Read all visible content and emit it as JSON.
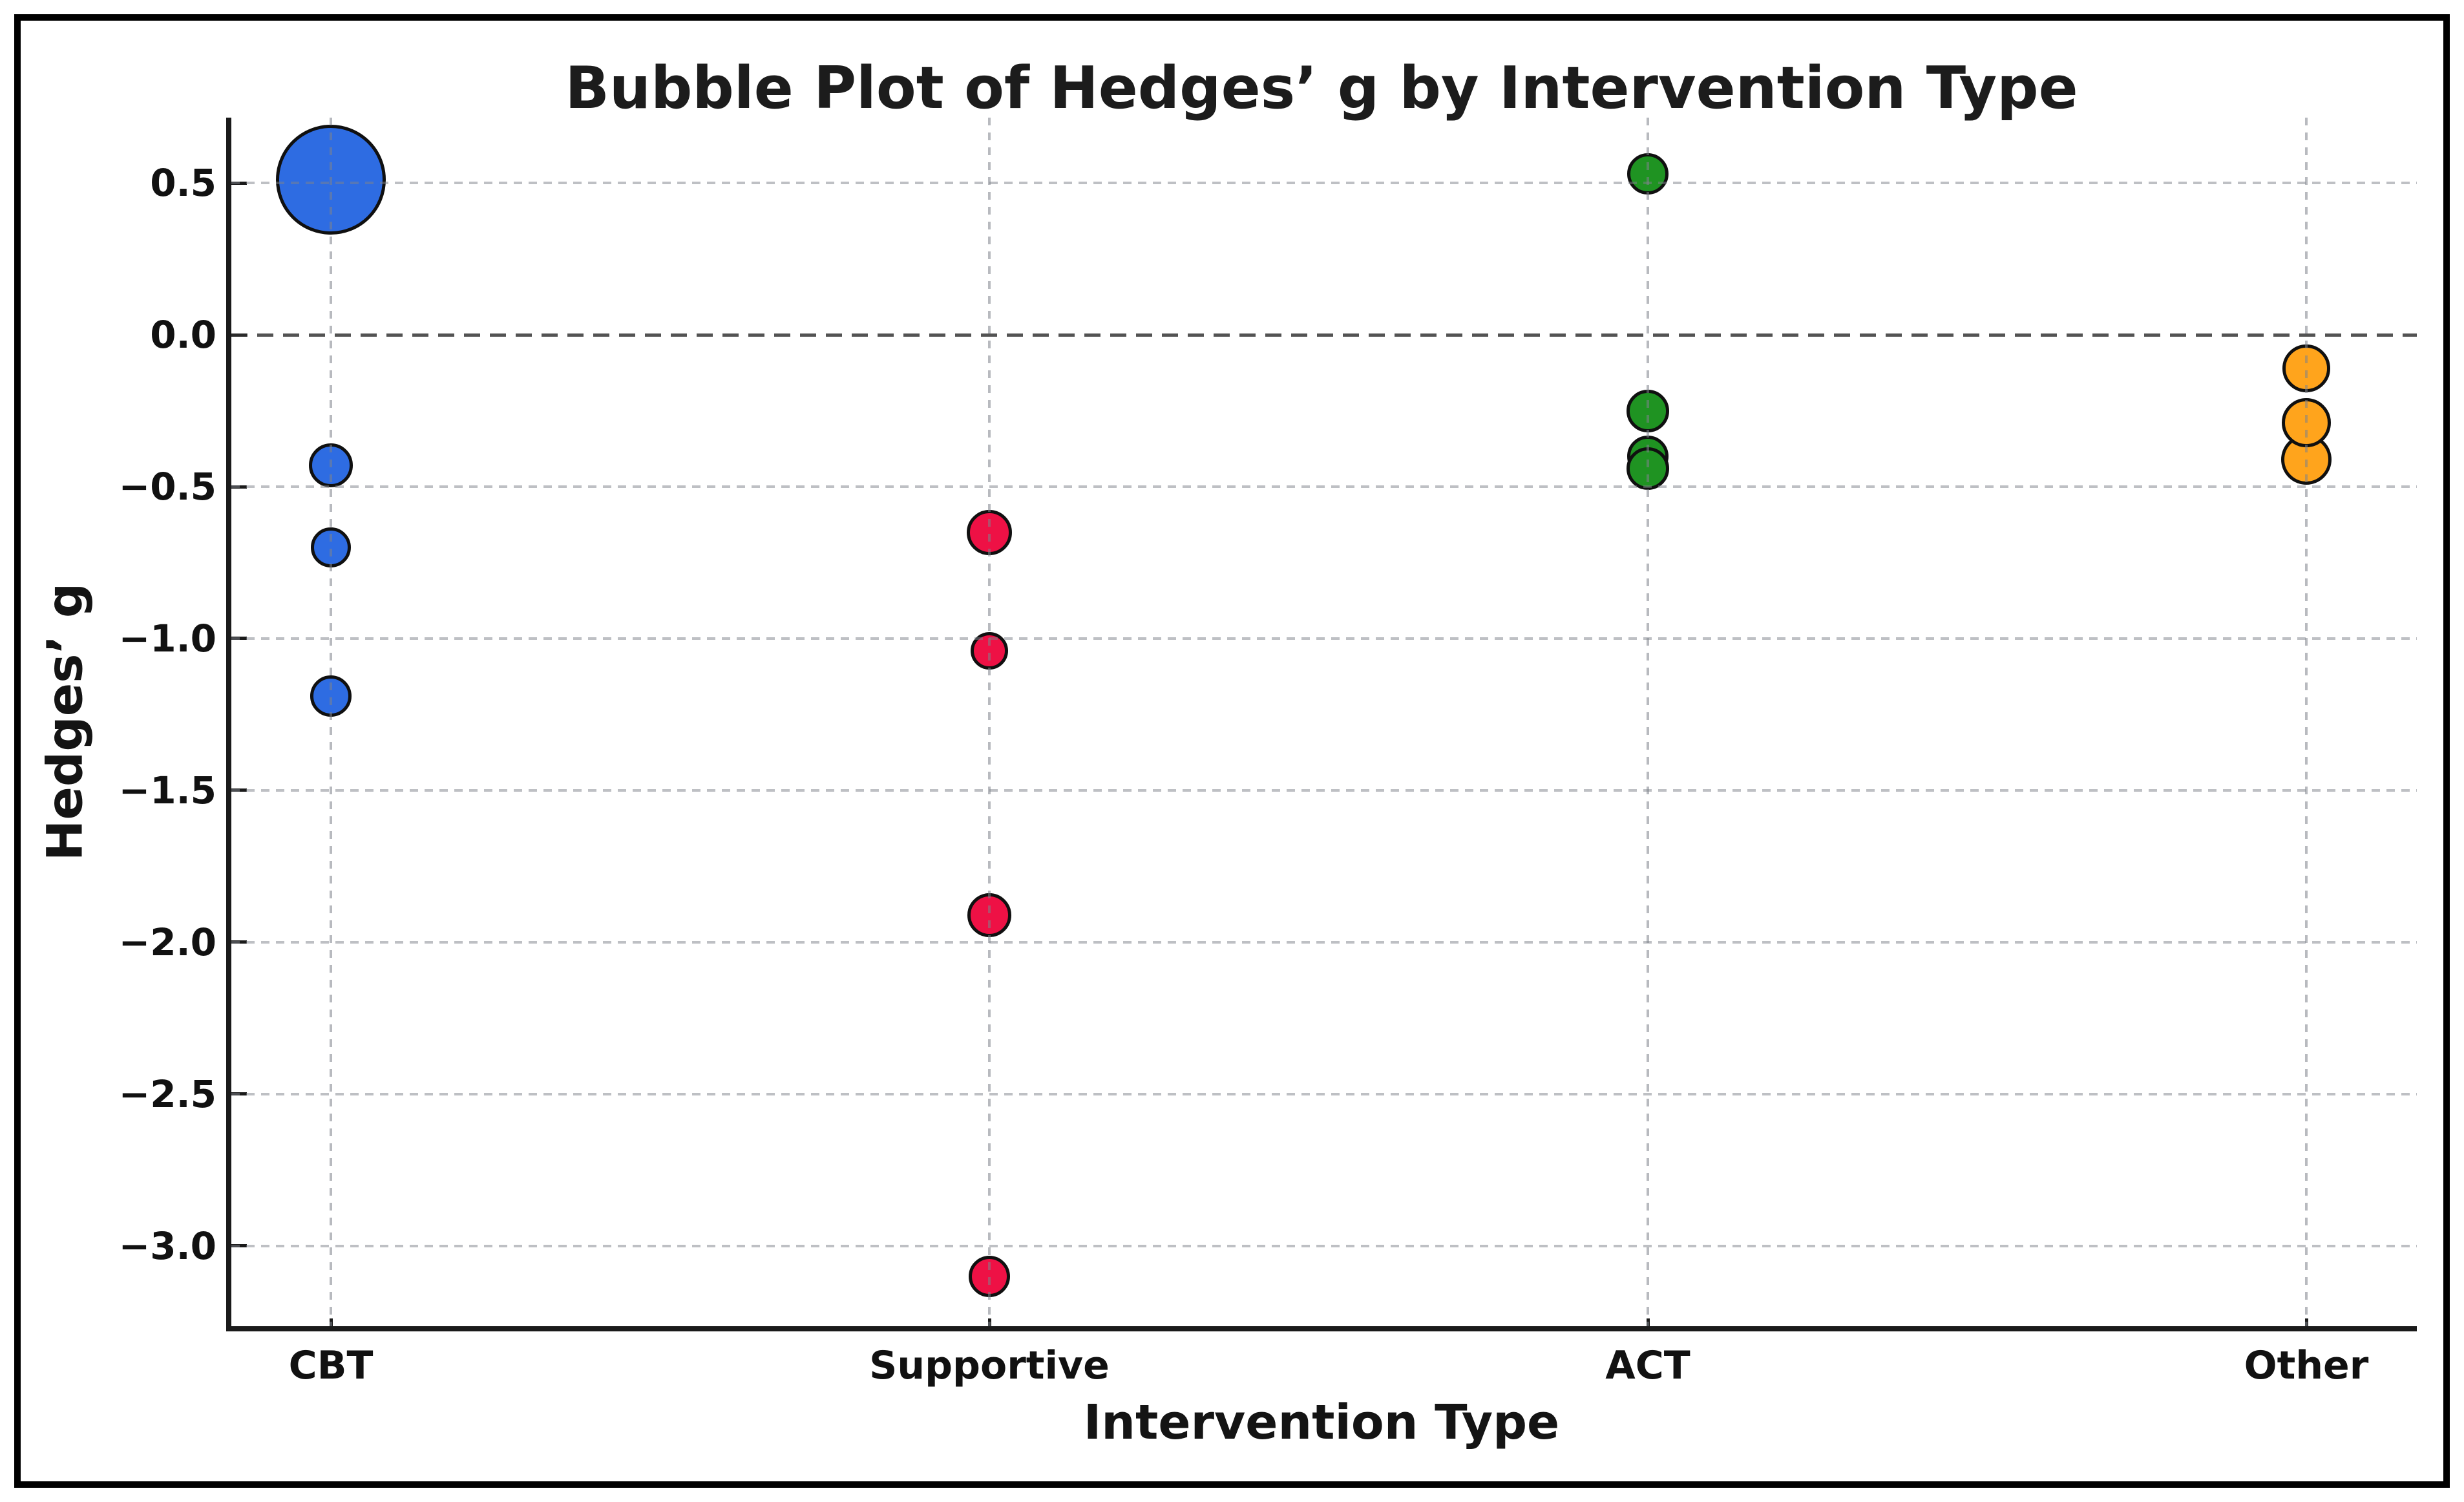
{
  "chart_data": {
    "type": "scatter",
    "subtype": "bubble",
    "title": "Bubble Plot of Hedges’ g by Intervention Type",
    "xlabel": "Intervention Type",
    "ylabel": "Hedges’ g",
    "categories": [
      "CBT",
      "Supportive",
      "ACT",
      "Other"
    ],
    "y_ticks": [
      0.5,
      0.0,
      -0.5,
      -1.0,
      -1.5,
      -2.0,
      -2.5,
      -3.0
    ],
    "y_tick_labels": [
      "0.5",
      "0.0",
      "−0.5",
      "−1.0",
      "−1.5",
      "−2.0",
      "−2.5",
      "−3.0"
    ],
    "ylim": [
      -3.264,
      0.715
    ],
    "zero_reference_line": 0.0,
    "grid": {
      "horizontal": "light-dashed",
      "vertical": "light-dashed",
      "zero": "dark-dashed",
      "drawn_above_points": true
    },
    "legend": "none",
    "bubble_size_unit": "rendered radius in px (encodes study weight)",
    "series": [
      {
        "name": "CBT",
        "color": "#2e6ce2",
        "points": [
          {
            "g": 0.51,
            "r": 85
          },
          {
            "g": -0.43,
            "r": 34
          },
          {
            "g": -0.7,
            "r": 31
          },
          {
            "g": -1.19,
            "r": 32
          }
        ]
      },
      {
        "name": "Supportive",
        "color": "#ee1145",
        "points": [
          {
            "g": -0.65,
            "r": 35
          },
          {
            "g": -1.04,
            "r": 29
          },
          {
            "g": -1.91,
            "r": 34
          },
          {
            "g": -3.1,
            "r": 32
          }
        ]
      },
      {
        "name": "ACT",
        "color": "#1f9322",
        "points": [
          {
            "g": 0.53,
            "r": 32
          },
          {
            "g": -0.25,
            "r": 33
          },
          {
            "g": -0.4,
            "r": 32
          },
          {
            "g": -0.44,
            "r": 33
          }
        ]
      },
      {
        "name": "Other",
        "color": "#ffa41c",
        "points": [
          {
            "g": -0.41,
            "r": 39
          },
          {
            "g": -0.29,
            "r": 38
          },
          {
            "g": -0.11,
            "r": 37
          }
        ]
      }
    ]
  }
}
